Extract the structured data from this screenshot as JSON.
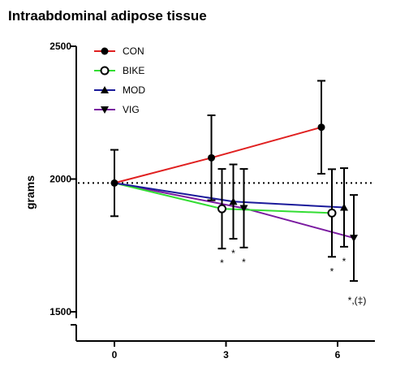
{
  "chart_data": {
    "type": "line",
    "title": "Intraabdominal adipose tissue",
    "xlabel": "",
    "ylabel": "grams",
    "x_ticks": [
      0,
      3,
      6
    ],
    "y_ticks": [
      1500,
      2000,
      2500
    ],
    "xlim": [
      -1,
      7
    ],
    "ylim": [
      1500,
      2500
    ],
    "reference_line": {
      "y": 1985,
      "style": "dotted"
    },
    "legend_position": "top-left",
    "grid": false,
    "series": [
      {
        "name": "CON",
        "color": "#e02020",
        "marker": "circle-filled",
        "points": [
          {
            "x": 0,
            "y": 1985,
            "err": 125
          },
          {
            "x": 3,
            "y": 2080,
            "err": 160
          },
          {
            "x": 6,
            "y": 2195,
            "err": 175
          }
        ]
      },
      {
        "name": "BIKE",
        "color": "#33dd33",
        "marker": "circle-open",
        "points": [
          {
            "x": 0,
            "y": 1985,
            "err": 125
          },
          {
            "x": 3,
            "y": 1888,
            "err": 150
          },
          {
            "x": 6,
            "y": 1872,
            "err": 165
          }
        ]
      },
      {
        "name": "MOD",
        "color": "#1a1a9a",
        "marker": "triangle-up",
        "points": [
          {
            "x": 0,
            "y": 1985,
            "err": 125
          },
          {
            "x": 3,
            "y": 1915,
            "err": 140
          },
          {
            "x": 6,
            "y": 1893,
            "err": 148
          }
        ]
      },
      {
        "name": "VIG",
        "color": "#7a1aa0",
        "marker": "triangle-down",
        "points": [
          {
            "x": 0,
            "y": 1985,
            "err": 125
          },
          {
            "x": 3,
            "y": 1890,
            "err": 148
          },
          {
            "x": 6,
            "y": 1778,
            "err": 162
          }
        ]
      }
    ],
    "annotations": [
      {
        "text": "*",
        "x": 3,
        "series": "BIKE"
      },
      {
        "text": "*",
        "x": 3,
        "series": "MOD"
      },
      {
        "text": "*",
        "x": 3,
        "series": "VIG"
      },
      {
        "text": "*",
        "x": 6,
        "series": "BIKE"
      },
      {
        "text": "*",
        "x": 6,
        "series": "MOD"
      },
      {
        "text": "*,(‡)",
        "x": 6,
        "series": "VIG"
      }
    ]
  }
}
